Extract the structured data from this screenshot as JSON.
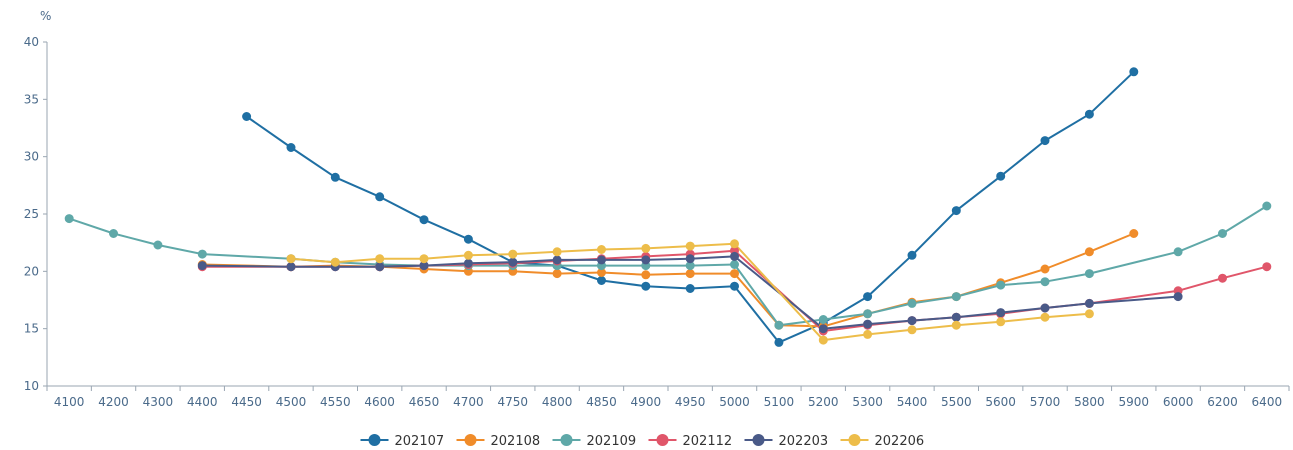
{
  "chart_data": {
    "type": "line",
    "title": "",
    "xlabel": "",
    "ylabel": "%",
    "ylim": [
      10,
      40
    ],
    "yticks": [
      "10",
      "15",
      "20",
      "25",
      "30",
      "35",
      "40"
    ],
    "categories": [
      "4100",
      "4200",
      "4300",
      "4400",
      "4450",
      "4500",
      "4550",
      "4600",
      "4650",
      "4700",
      "4750",
      "4800",
      "4850",
      "4900",
      "4950",
      "5000",
      "5100",
      "5200",
      "5300",
      "5400",
      "5500",
      "5600",
      "5700",
      "5800",
      "5900",
      "6000",
      "6200",
      "6400"
    ],
    "grid": false,
    "legend_position": "bottom-center",
    "series": [
      {
        "name": "202107",
        "color": "#1f6fa3",
        "values": [
          null,
          null,
          null,
          null,
          33.5,
          30.8,
          28.2,
          26.5,
          24.5,
          22.8,
          20.8,
          20.5,
          19.2,
          18.7,
          18.5,
          18.7,
          13.8,
          15.5,
          17.8,
          21.4,
          25.3,
          28.3,
          31.4,
          33.7,
          37.4,
          null,
          null,
          null
        ]
      },
      {
        "name": "202108",
        "color": "#f08c2a",
        "values": [
          null,
          null,
          null,
          20.6,
          null,
          20.4,
          20.5,
          20.4,
          20.2,
          20.0,
          20.0,
          19.8,
          19.9,
          19.7,
          19.8,
          19.8,
          15.3,
          15.2,
          16.3,
          17.3,
          17.8,
          19.0,
          20.2,
          21.7,
          23.3,
          null,
          null,
          null
        ]
      },
      {
        "name": "202109",
        "color": "#5fa8a8",
        "values": [
          24.6,
          23.3,
          22.3,
          21.5,
          null,
          21.1,
          20.8,
          20.6,
          20.5,
          20.5,
          20.5,
          20.5,
          20.5,
          20.5,
          20.5,
          20.6,
          15.3,
          15.8,
          16.3,
          17.2,
          17.8,
          18.8,
          19.1,
          19.8,
          null,
          21.7,
          23.3,
          25.7
        ]
      },
      {
        "name": "202112",
        "color": "#e0566a",
        "values": [
          null,
          null,
          null,
          20.4,
          null,
          20.4,
          20.4,
          20.4,
          20.5,
          20.6,
          20.7,
          20.9,
          21.1,
          21.3,
          21.5,
          21.8,
          null,
          14.8,
          15.3,
          15.7,
          16.0,
          16.3,
          16.8,
          17.2,
          null,
          18.3,
          19.4,
          20.4
        ]
      },
      {
        "name": "202203",
        "color": "#4a5a88",
        "values": [
          null,
          null,
          null,
          20.5,
          null,
          20.4,
          20.4,
          20.4,
          20.5,
          20.7,
          20.8,
          21.0,
          21.0,
          21.0,
          21.1,
          21.3,
          null,
          15.0,
          15.4,
          15.7,
          16.0,
          16.4,
          16.8,
          17.2,
          null,
          17.8,
          null,
          null
        ]
      },
      {
        "name": "202206",
        "color": "#edbd4a",
        "values": [
          null,
          null,
          null,
          null,
          null,
          21.1,
          20.8,
          21.1,
          21.1,
          21.4,
          21.5,
          21.7,
          21.9,
          22.0,
          22.2,
          22.4,
          null,
          14.0,
          14.5,
          14.9,
          15.3,
          15.6,
          16.0,
          16.3,
          null,
          null,
          null,
          null
        ]
      }
    ]
  }
}
